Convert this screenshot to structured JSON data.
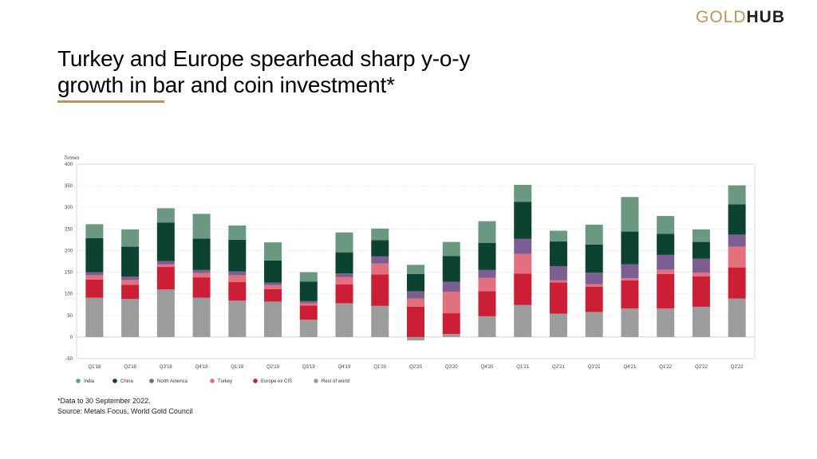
{
  "logo": {
    "part1": "GOLD",
    "part2": "HUB"
  },
  "title": "Turkey and Europe spearhead sharp y-o-y growth in bar and coin investment*",
  "footnote": {
    "line1": "*Data to 30 September 2022.",
    "line2": "Source: Metals Focus, World Gold Council"
  },
  "chart_data": {
    "type": "bar",
    "stacked": true,
    "ylabel": "Tonnes",
    "ylim": [
      -50,
      400
    ],
    "yticks": [
      -50,
      0,
      50,
      100,
      150,
      200,
      250,
      300,
      350,
      400
    ],
    "grid": true,
    "legend": "bottom-left",
    "categories": [
      "Q1'18",
      "Q2'18",
      "Q3'18",
      "Q4'18",
      "Q1'19",
      "Q2'19",
      "Q3'19",
      "Q4'19",
      "Q1'20",
      "Q2'20",
      "Q3'20",
      "Q4'20",
      "Q1'21",
      "Q2'21",
      "Q3'21",
      "Q4'21",
      "Q1'22",
      "Q2'22",
      "Q3'22"
    ],
    "series": [
      {
        "name": "Rest of world",
        "color": "#9c9c9c",
        "values": [
          91,
          88,
          110,
          91,
          84,
          82,
          40,
          78,
          72,
          -8,
          7,
          48,
          74,
          54,
          58,
          66,
          66,
          70,
          89
        ]
      },
      {
        "name": "Europe ex CIS",
        "color": "#cc1f36",
        "values": [
          42,
          33,
          52,
          47,
          43,
          29,
          33,
          44,
          73,
          70,
          48,
          58,
          73,
          72,
          58,
          65,
          80,
          70,
          72
        ]
      },
      {
        "name": "Turkey",
        "color": "#e2707d",
        "values": [
          10,
          11,
          6,
          10,
          16,
          9,
          5,
          17,
          25,
          19,
          50,
          31,
          45,
          5,
          6,
          5,
          10,
          9,
          48
        ]
      },
      {
        "name": "North America",
        "color": "#7c5e93",
        "values": [
          7,
          8,
          8,
          7,
          9,
          6,
          5,
          8,
          17,
          17,
          23,
          18,
          35,
          33,
          27,
          32,
          34,
          32,
          28
        ]
      },
      {
        "name": "China",
        "color": "#0b4330",
        "values": [
          79,
          69,
          89,
          73,
          73,
          51,
          45,
          49,
          37,
          40,
          59,
          63,
          86,
          57,
          65,
          76,
          49,
          39,
          70
        ]
      },
      {
        "name": "India",
        "color": "#6a9880",
        "values": [
          32,
          40,
          33,
          57,
          33,
          42,
          22,
          46,
          27,
          21,
          33,
          50,
          39,
          25,
          46,
          80,
          41,
          29,
          44
        ]
      }
    ]
  },
  "legend_order": [
    "India",
    "China",
    "North America",
    "Turkey",
    "Europe ex CIS",
    "Rest of world"
  ]
}
